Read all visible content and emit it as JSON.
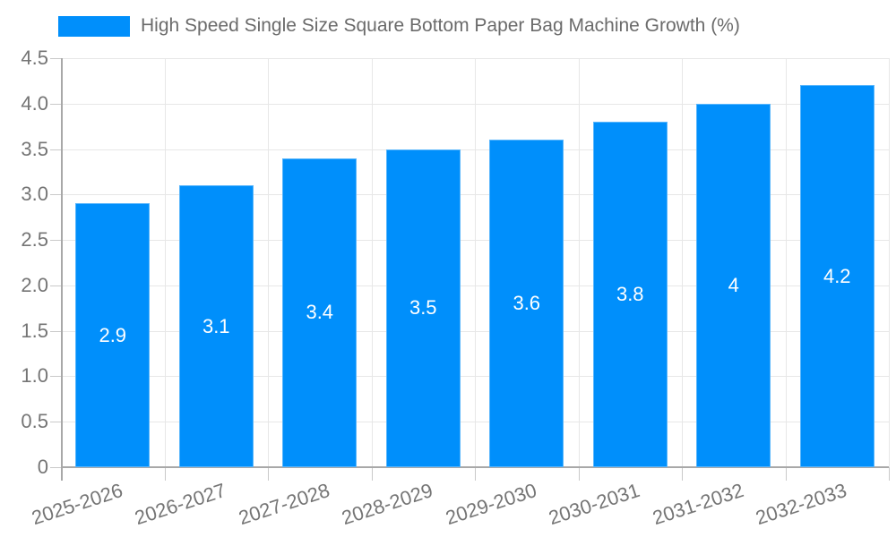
{
  "chart_data": {
    "type": "bar",
    "title": "High Speed Single Size Square Bottom Paper Bag Machine Growth (%)",
    "legend": {
      "label": "High Speed Single Size Square Bottom Paper Bag Machine Growth (%)",
      "position": "top"
    },
    "categories": [
      "2025-2026",
      "2026-2027",
      "2027-2028",
      "2028-2029",
      "2029-2030",
      "2030-2031",
      "2031-2032",
      "2032-2033"
    ],
    "values": [
      2.9,
      3.1,
      3.4,
      3.5,
      3.6,
      3.8,
      4,
      4.2
    ],
    "value_labels": [
      "2.9",
      "3.1",
      "3.4",
      "3.5",
      "3.6",
      "3.8",
      "4",
      "4.2"
    ],
    "xlabel": "",
    "ylabel": "",
    "ylim": [
      0,
      4.5
    ],
    "yticks": [
      0,
      0.5,
      1.0,
      1.5,
      2.0,
      2.5,
      3.0,
      3.5,
      4.0,
      4.5
    ],
    "ytick_labels": [
      "0",
      "0.5",
      "1.0",
      "1.5",
      "2.0",
      "2.5",
      "3.0",
      "3.5",
      "4.0",
      "4.5"
    ],
    "grid": "both",
    "colors": {
      "bar": "#008FFB",
      "data_label": "#ffffff",
      "axis_text": "#757575",
      "legend_text": "#6b6b6b",
      "gridline": "#e7e7e7",
      "axis_line": "#a8a8a8",
      "tick": "#c9c9c9"
    }
  }
}
